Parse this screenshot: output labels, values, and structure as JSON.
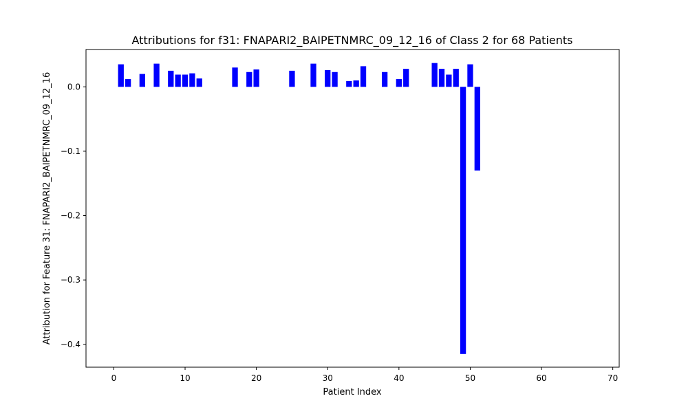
{
  "chart_data": {
    "type": "bar",
    "title": "Attributions for f31: FNAPARI2_BAIPETNMRC_09_12_16 of Class 2 for 68 Patients",
    "xlabel": "Patient Index",
    "ylabel": "Attribution for Feature 31: FNAPARI2_BAIPETNMRC_09_12_16",
    "xlim": [
      -3.9,
      70.9
    ],
    "ylim": [
      -0.4355,
      0.058
    ],
    "x_ticks": [
      0,
      10,
      20,
      30,
      40,
      50,
      60,
      70
    ],
    "y_ticks": [
      0.0,
      -0.1,
      -0.2,
      -0.3,
      -0.4
    ],
    "bar_width": 0.8,
    "color": "#0000ff",
    "grid": false,
    "legend": "none",
    "points": [
      {
        "x": 1,
        "y": 0.035
      },
      {
        "x": 2,
        "y": 0.012
      },
      {
        "x": 4,
        "y": 0.02
      },
      {
        "x": 6,
        "y": 0.036
      },
      {
        "x": 8,
        "y": 0.025
      },
      {
        "x": 9,
        "y": 0.019
      },
      {
        "x": 10,
        "y": 0.019
      },
      {
        "x": 11,
        "y": 0.021
      },
      {
        "x": 12,
        "y": 0.013
      },
      {
        "x": 17,
        "y": 0.03
      },
      {
        "x": 19,
        "y": 0.023
      },
      {
        "x": 20,
        "y": 0.027
      },
      {
        "x": 25,
        "y": 0.025
      },
      {
        "x": 28,
        "y": 0.036
      },
      {
        "x": 30,
        "y": 0.026
      },
      {
        "x": 31,
        "y": 0.023
      },
      {
        "x": 33,
        "y": 0.009
      },
      {
        "x": 34,
        "y": 0.01
      },
      {
        "x": 35,
        "y": 0.032
      },
      {
        "x": 38,
        "y": 0.023
      },
      {
        "x": 40,
        "y": 0.012
      },
      {
        "x": 41,
        "y": 0.028
      },
      {
        "x": 45,
        "y": 0.037
      },
      {
        "x": 46,
        "y": 0.028
      },
      {
        "x": 47,
        "y": 0.019
      },
      {
        "x": 48,
        "y": 0.028
      },
      {
        "x": 49,
        "y": -0.415
      },
      {
        "x": 50,
        "y": 0.035
      },
      {
        "x": 51,
        "y": -0.13
      }
    ]
  }
}
